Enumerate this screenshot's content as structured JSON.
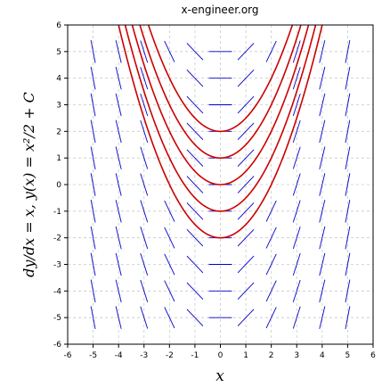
{
  "chart_data": {
    "type": "line",
    "title": "x-engineer.org",
    "xlabel": "x",
    "ylabel": "dy/dx = x,   y(x) = x²/2 + C",
    "xlim": [
      -6,
      6
    ],
    "ylim": [
      -6,
      6
    ],
    "x_ticks": [
      "-6",
      "-5",
      "-4",
      "-3",
      "-2",
      "-1",
      "0",
      "1",
      "2",
      "3",
      "4",
      "5",
      "6"
    ],
    "y_ticks": [
      "6",
      "5",
      "4",
      "3",
      "2",
      "1",
      "0",
      "-1",
      "-2",
      "-3",
      "-4",
      "-5",
      "-6"
    ],
    "grid": true,
    "slope_field": {
      "x": [
        -5,
        -4,
        -3,
        -2,
        -1,
        0,
        1,
        2,
        3,
        4,
        5
      ],
      "y": [
        -5,
        -4,
        -3,
        -2,
        -1,
        0,
        1,
        2,
        3,
        4,
        5
      ],
      "slope": "dy/dx = x",
      "color": "#0000cc"
    },
    "series": [
      {
        "C": 2,
        "color": "#cc0000"
      },
      {
        "C": 1,
        "color": "#cc0000"
      },
      {
        "C": 0,
        "color": "#cc0000"
      },
      {
        "C": -1,
        "color": "#cc0000"
      },
      {
        "C": -2,
        "color": "#cc0000"
      }
    ]
  }
}
